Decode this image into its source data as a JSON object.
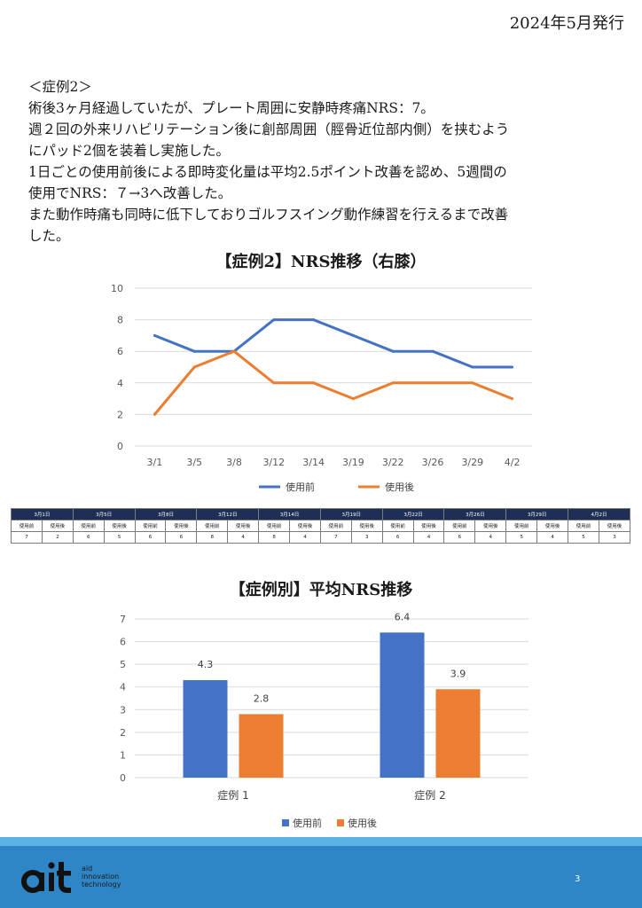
{
  "header": {
    "issue": "2024年5月発行"
  },
  "body": {
    "lines": [
      "＜症例2＞",
      "術後3ヶ月経過していたが、プレート周囲に安静時疼痛NRS：7。",
      "週２回の外来リハビリテーション後に創部周囲（脛骨近位部内側）を挟むよう",
      "にパッド2個を装着し実施した。",
      "1日ごとの使用前後による即時変化量は平均2.5ポイント改善を認め、5週間の",
      "使用でNRS：７→3へ改善した。",
      "また動作時痛も同時に低下しておりゴルフスイング動作練習を行えるまで改善",
      "した。"
    ]
  },
  "chart1_title": "【症例2】NRS推移（右膝）",
  "chart2_title": "【症例別】平均NRS推移",
  "table": {
    "dates": [
      "3月1日",
      "3月5日",
      "3月8日",
      "3月12日",
      "3月14日",
      "3月19日",
      "3月22日",
      "3月26日",
      "3月29日",
      "4月2日"
    ],
    "sub_headers": [
      "使用前",
      "使用後"
    ],
    "values": [
      7,
      2,
      6,
      5,
      6,
      6,
      8,
      4,
      8,
      4,
      7,
      3,
      6,
      4,
      6,
      4,
      5,
      4,
      5,
      3
    ]
  },
  "chart_data": [
    {
      "type": "line",
      "title": "【症例2】NRS推移（右膝）",
      "categories": [
        "3/1",
        "3/5",
        "3/8",
        "3/12",
        "3/14",
        "3/19",
        "3/22",
        "3/26",
        "3/29",
        "4/2"
      ],
      "series": [
        {
          "name": "使用前",
          "color": "#4472c4",
          "values": [
            7,
            6,
            6,
            8,
            8,
            7,
            6,
            6,
            5,
            5
          ]
        },
        {
          "name": "使用後",
          "color": "#ed7d31",
          "values": [
            2,
            5,
            6,
            4,
            4,
            3,
            4,
            4,
            4,
            3
          ]
        }
      ],
      "ylim": [
        0,
        10
      ],
      "yticks": [
        0,
        2,
        4,
        6,
        8,
        10
      ],
      "grid": true,
      "legend": "bottom"
    },
    {
      "type": "bar",
      "title": "【症例別】平均NRS推移",
      "categories": [
        "症例 1",
        "症例 2"
      ],
      "series": [
        {
          "name": "使用前",
          "color": "#4472c4",
          "values": [
            4.3,
            6.4
          ]
        },
        {
          "name": "使用後",
          "color": "#ed7d31",
          "values": [
            2.8,
            3.9
          ]
        }
      ],
      "ylim": [
        0,
        7
      ],
      "yticks": [
        0,
        1,
        2,
        3,
        4,
        5,
        6,
        7
      ],
      "grid": true,
      "legend": "bottom"
    }
  ],
  "footer": {
    "logo": "ait",
    "tagline": [
      "aid",
      "innovation",
      "technology"
    ],
    "page": "3"
  }
}
